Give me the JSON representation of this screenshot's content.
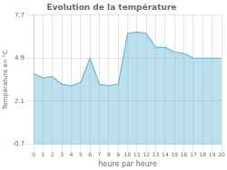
{
  "chart_data": {
    "type": "area",
    "title": "Evolution de la température",
    "x_label": "heure par heure",
    "y_label": "Température en °C",
    "x": [
      0,
      1,
      2,
      3,
      4,
      5,
      6,
      7,
      8,
      9,
      10,
      11,
      12,
      13,
      14,
      15,
      16,
      17,
      18,
      19,
      20
    ],
    "values": [
      3.9,
      3.6,
      3.7,
      3.2,
      3.1,
      3.3,
      4.9,
      3.2,
      3.1,
      3.2,
      6.5,
      6.6,
      6.5,
      5.6,
      5.6,
      5.3,
      5.2,
      4.9,
      4.9,
      4.9,
      4.9
    ],
    "color": "#6ab8d4",
    "xlim": [
      0,
      20
    ],
    "xticks": [
      0,
      1,
      2,
      3,
      4,
      5,
      6,
      7,
      8,
      9,
      10,
      11,
      12,
      13,
      14,
      15,
      16,
      17,
      18,
      19,
      20
    ],
    "ylim": [
      -0.7,
      7.7
    ],
    "yticks": [
      -0.7,
      2.1,
      4.9,
      7.7
    ],
    "grid": true
  }
}
